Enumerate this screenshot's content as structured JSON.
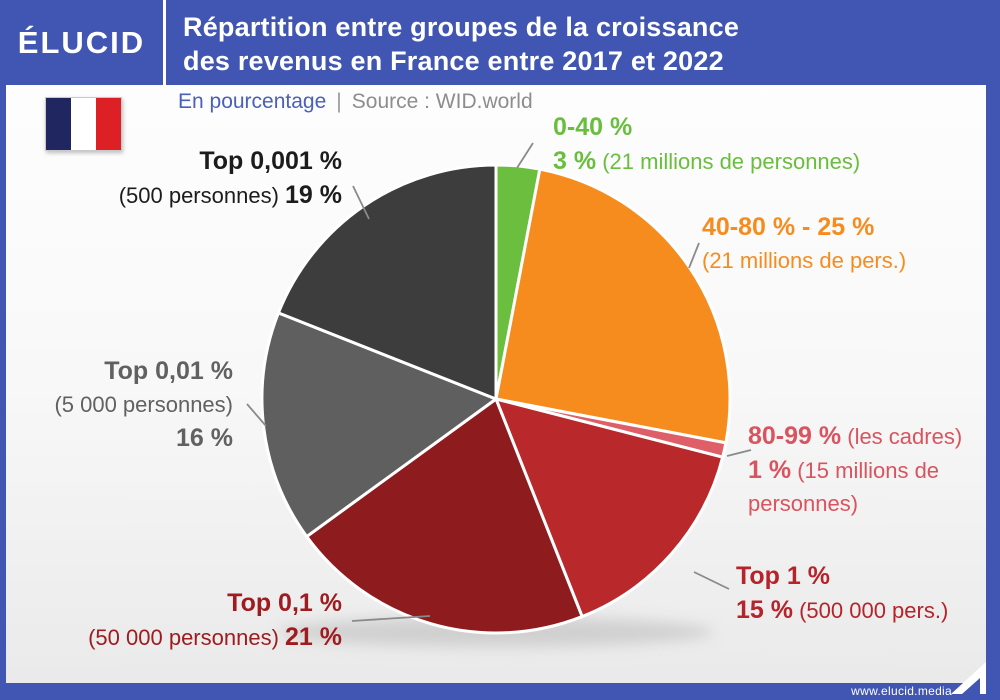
{
  "header": {
    "logo": "ÉLUCID",
    "title_line1": "Répartition entre groupes de la croissance",
    "title_line2": "des revenus en France entre 2017 et 2022"
  },
  "subtitle": {
    "unit": "En pourcentage",
    "separator": "|",
    "source": "Source : WID.world"
  },
  "footer": {
    "url": "www.elucid.media"
  },
  "colors": {
    "accent_blue": "#4156b2",
    "subtitle_blue": "#4961b8",
    "source_gray": "#8d8d8d"
  },
  "chart_data": {
    "type": "pie",
    "title": "Répartition entre groupes de la croissance des revenus en France entre 2017 et 2022",
    "unit": "En pourcentage",
    "source": "WID.world",
    "start_angle_deg": 0,
    "direction": "clockwise",
    "total": 100,
    "segments": [
      {
        "group": "0-40 %",
        "share_pct": 3,
        "people": "21 millions de personnes",
        "color": "#6cbe3f",
        "label": {
          "color": "#6abe3e",
          "lines": [
            [
              {
                "t": "0-40 %",
                "b": 1
              }
            ],
            [
              {
                "t": "3 %",
                "b": 1
              },
              {
                "t": " (21 millions de personnes)",
                "b": 0
              }
            ]
          ]
        }
      },
      {
        "group": "40-80 %",
        "share_pct": 25,
        "people": "21 millions de pers.",
        "color": "#f78c1e",
        "label": {
          "color": "#f78c1e",
          "lines": [
            [
              {
                "t": "40-80 % - 25 %",
                "b": 1
              }
            ],
            [
              {
                "t": "(21 millions de pers.)",
                "b": 0
              }
            ]
          ]
        }
      },
      {
        "group": "80-99 % (les cadres)",
        "share_pct": 1,
        "people": "15 millions de personnes",
        "color": "#df5f68",
        "label": {
          "color": "#d9545e",
          "lines": [
            [
              {
                "t": "80-99 %",
                "b": 1
              },
              {
                "t": " (les cadres)",
                "b": 0
              }
            ],
            [
              {
                "t": "1 %",
                "b": 1
              },
              {
                "t": " (15 millions de",
                "b": 0
              }
            ],
            [
              {
                "t": "personnes)",
                "b": 0
              }
            ]
          ]
        }
      },
      {
        "group": "Top 1 %",
        "share_pct": 15,
        "people": "500 000 pers.",
        "color": "#b9282a",
        "label": {
          "color": "#b5242a",
          "lines": [
            [
              {
                "t": "Top 1 %",
                "b": 1
              }
            ],
            [
              {
                "t": "15 %",
                "b": 1
              },
              {
                "t": " (500 000 pers.)",
                "b": 0
              }
            ]
          ]
        }
      },
      {
        "group": "Top 0,1 %",
        "share_pct": 21,
        "people": "50 000 personnes",
        "color": "#8e1b1e",
        "label": {
          "color": "#9e1c20",
          "lines": [
            [
              {
                "t": "Top 0,1 %",
                "b": 1
              }
            ],
            [
              {
                "t": "(50 000 personnes) ",
                "b": 0
              },
              {
                "t": "21 %",
                "b": 1
              }
            ]
          ]
        }
      },
      {
        "group": "Top 0,01 %",
        "share_pct": 16,
        "people": "5 000 personnes",
        "color": "#5f5f5f",
        "label": {
          "color": "#616161",
          "lines": [
            [
              {
                "t": "Top 0,01 %",
                "b": 1
              }
            ],
            [
              {
                "t": "(5 000 personnes)",
                "b": 0
              }
            ],
            [
              {
                "t": "16 %",
                "b": 1
              }
            ]
          ]
        }
      },
      {
        "group": "Top 0,001 %",
        "share_pct": 19,
        "people": "500 personnes",
        "color": "#3d3d3d",
        "label": {
          "color": "#1c1c1c",
          "lines": [
            [
              {
                "t": "Top 0,001 %",
                "b": 1
              }
            ],
            [
              {
                "t": "(500 personnes) ",
                "b": 0
              },
              {
                "t": "19 %",
                "b": 1
              }
            ]
          ]
        }
      }
    ]
  }
}
